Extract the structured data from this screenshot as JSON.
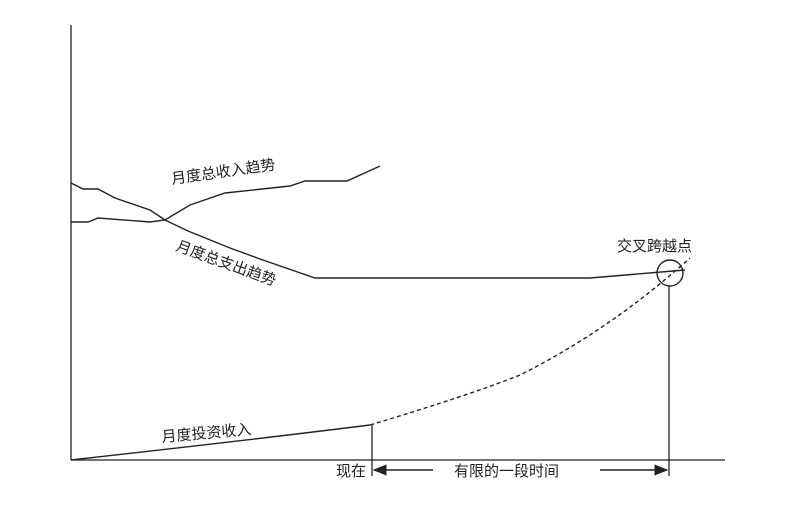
{
  "labels": {
    "income_trend": "月度总收入趋势",
    "expense_trend": "月度总支出趋势",
    "investment_income": "月度投资收入",
    "crossover_point": "交叉跨越点",
    "now": "现在",
    "finite_period": "有限的一段时间"
  },
  "colors": {
    "line": "#222222",
    "background": "#ffffff"
  }
}
